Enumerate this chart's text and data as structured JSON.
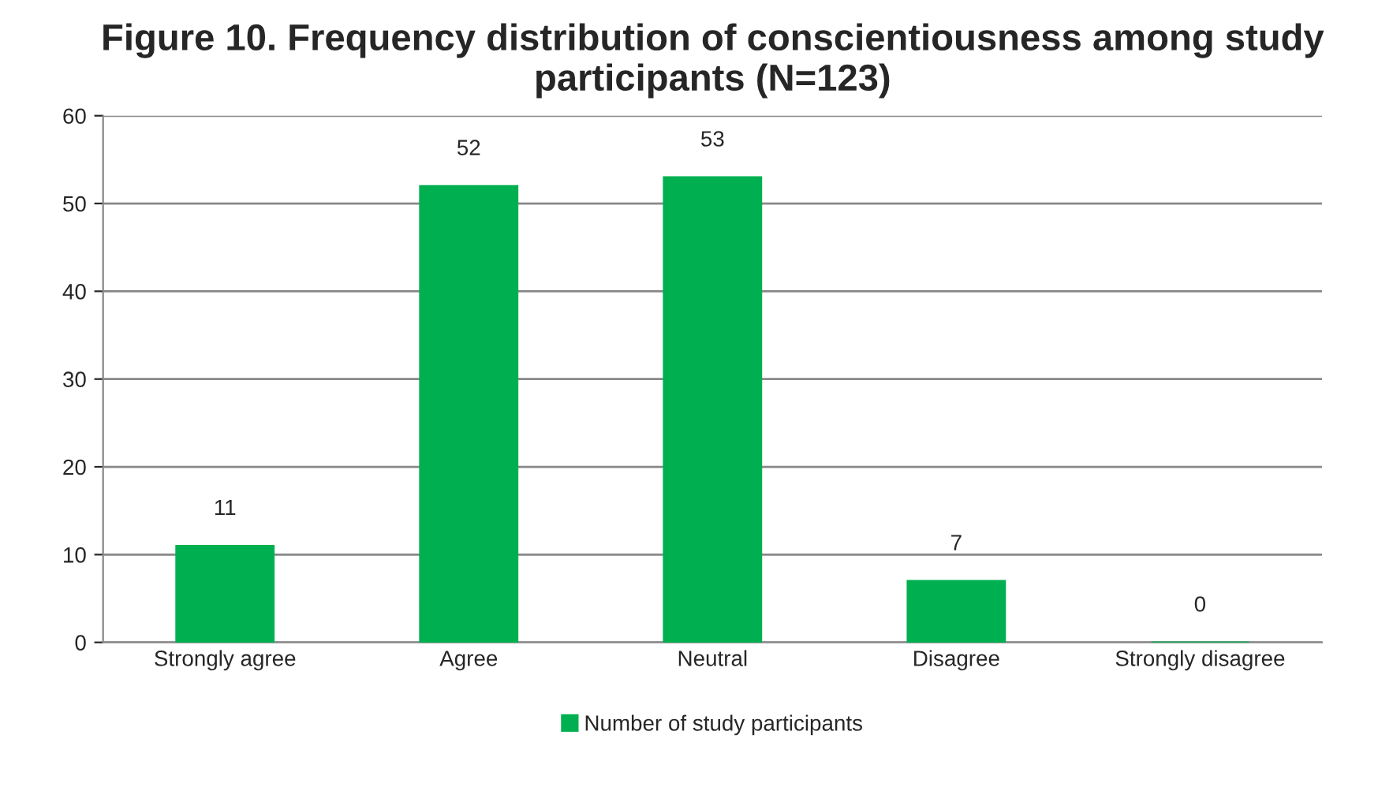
{
  "chart_data": {
    "type": "bar",
    "title": "Figure 10. Frequency distribution of conscientiousness among study participants (N=123)",
    "categories": [
      "Strongly agree",
      "Agree",
      "Neutral",
      "Disagree",
      "Strongly disagree"
    ],
    "series": [
      {
        "name": "Number of study participants",
        "color": "#00b050",
        "values": [
          11,
          52,
          53,
          7,
          0
        ]
      }
    ],
    "ylim": [
      0,
      60
    ],
    "yticks": [
      0,
      10,
      20,
      30,
      40,
      50,
      60
    ],
    "grid": "y",
    "legend": "bottom",
    "data_labels": true
  }
}
